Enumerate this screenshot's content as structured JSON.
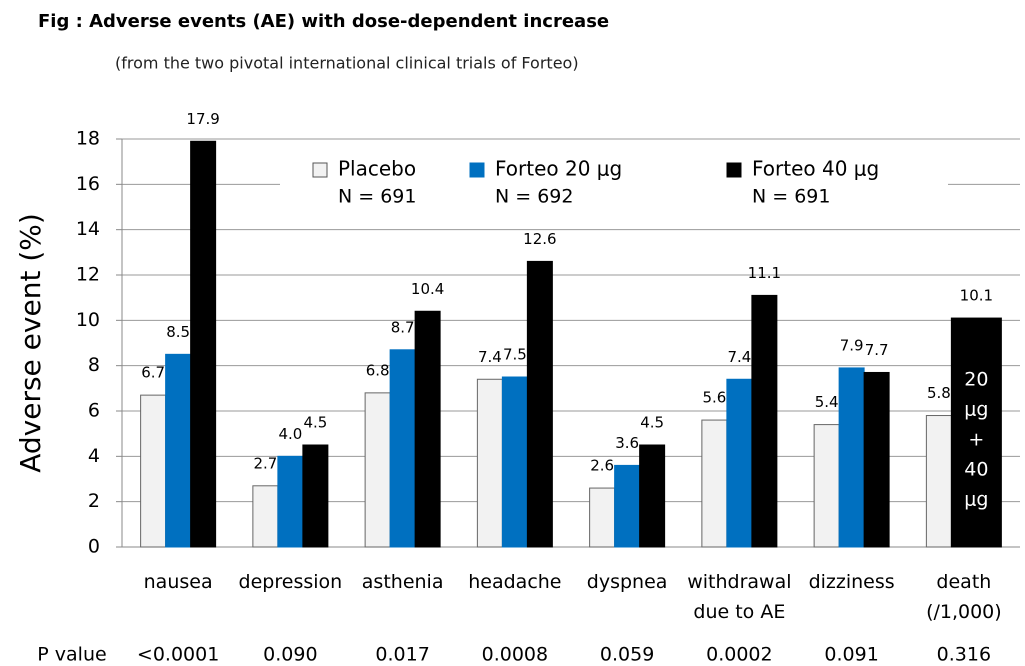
{
  "chart_data": {
    "type": "bar",
    "title": "Fig : Adverse events (AE) with dose-dependent increase",
    "subtitle": "(from the two pivotal international clinical trials of Forteo)",
    "y_label": "Adverse event (%)",
    "categories": [
      "nausea",
      "depression",
      "asthenia",
      "headache",
      "dyspnea",
      "withdrawal due to AE",
      "dizziness",
      "death (/1,000)"
    ],
    "series": [
      {
        "name": "Placebo",
        "n_label": "N =  691",
        "color": "#f2f2f2",
        "values": [
          6.7,
          2.7,
          6.8,
          7.4,
          2.6,
          5.6,
          5.4,
          5.8
        ],
        "value_labels": [
          "6.7",
          "2.7",
          "6.8",
          "7.4",
          "2.6",
          "5.6",
          "5.4",
          "5.8"
        ]
      },
      {
        "name": "Forteo 20 μg",
        "n_label": "N = 692",
        "color": "#0070c0",
        "values": [
          8.5,
          4.0,
          8.7,
          7.5,
          3.6,
          7.4,
          7.9,
          null
        ],
        "value_labels": [
          "8.5",
          "4.0",
          "8.7",
          "7.5",
          "3.6",
          "7.4",
          "7.9",
          null
        ]
      },
      {
        "name": "Forteo 40 μg",
        "n_label": "N = 691",
        "color": "#000000",
        "values": [
          17.9,
          4.5,
          10.4,
          12.6,
          4.5,
          11.1,
          7.7,
          10.1
        ],
        "value_labels": [
          "17.9",
          "4.5",
          "10.4",
          "12.6",
          "4.5",
          "11.1",
          "7.7",
          "10.1"
        ]
      }
    ],
    "bar_annotation": [
      "20",
      "μg",
      "+",
      "40",
      "μg"
    ],
    "p_value_label": "P value",
    "p_values": [
      "<0.0001",
      "0.090",
      "0.017",
      "0.0008",
      "0.059",
      "0.0002",
      "0.091",
      "0.316"
    ],
    "ylim": [
      0,
      18
    ],
    "yticks": [
      0,
      2,
      4,
      6,
      8,
      10,
      12,
      14,
      16,
      18
    ],
    "grid": true
  }
}
